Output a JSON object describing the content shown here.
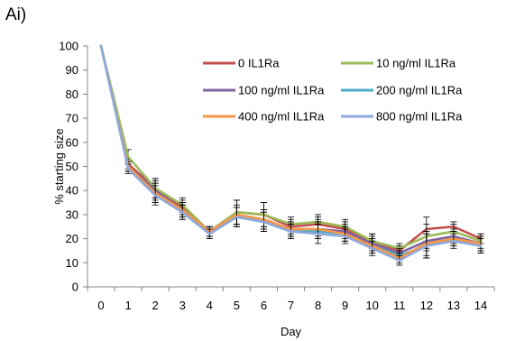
{
  "panel_label": "Ai)",
  "chart_data": {
    "type": "line",
    "title": "",
    "xlabel": "Day",
    "ylabel": "% starting size",
    "x": [
      0,
      1,
      2,
      3,
      4,
      5,
      6,
      7,
      8,
      9,
      10,
      11,
      12,
      13,
      14
    ],
    "xlim": [
      0,
      14
    ],
    "ylim": [
      0,
      100
    ],
    "yticks": [
      0,
      10,
      20,
      30,
      40,
      50,
      60,
      70,
      80,
      90,
      100
    ],
    "grid": false,
    "legend_position": "top-right",
    "series": [
      {
        "name": "0 IL1Ra",
        "color": "#C0504D",
        "values": [
          100,
          51,
          41,
          33,
          23,
          31,
          30,
          25,
          26,
          24,
          19,
          15,
          24,
          25,
          20
        ],
        "errors": [
          0,
          2,
          4,
          3,
          2,
          5,
          5,
          3,
          3,
          3,
          3,
          2,
          5,
          2,
          2
        ]
      },
      {
        "name": "10 ng/ml IL1Ra",
        "color": "#9BBB59",
        "values": [
          100,
          54,
          41,
          34,
          23,
          31,
          30,
          26,
          27,
          25,
          19,
          16,
          21,
          23,
          19
        ],
        "errors": [
          0,
          3,
          4,
          3,
          2,
          5,
          5,
          3,
          3,
          3,
          3,
          2,
          5,
          3,
          3
        ]
      },
      {
        "name": "100 ng/ml IL1Ra",
        "color": "#8064A2",
        "values": [
          100,
          50,
          40,
          32,
          23,
          29,
          28,
          24,
          24,
          23,
          18,
          14,
          19,
          21,
          18
        ],
        "errors": [
          0,
          2,
          4,
          3,
          2,
          4,
          4,
          3,
          3,
          3,
          3,
          2,
          4,
          3,
          3
        ]
      },
      {
        "name": "200 ng/ml IL1Ra",
        "color": "#4BACC6",
        "values": [
          100,
          50,
          39,
          31,
          22,
          29,
          27,
          23,
          23,
          22,
          17,
          13,
          17,
          20,
          17
        ],
        "errors": [
          0,
          2,
          4,
          3,
          2,
          4,
          4,
          3,
          3,
          3,
          3,
          2,
          5,
          3,
          3
        ]
      },
      {
        "name": "400 ng/ml IL1Ra",
        "color": "#F79646",
        "values": [
          100,
          50,
          39,
          32,
          23,
          30,
          28,
          24,
          24,
          22,
          17,
          12,
          18,
          20,
          18
        ],
        "errors": [
          0,
          2,
          4,
          3,
          2,
          4,
          4,
          3,
          4,
          3,
          3,
          2,
          5,
          3,
          3
        ]
      },
      {
        "name": "800 ng/ml IL1Ra",
        "color": "#8EA9DB",
        "values": [
          100,
          49,
          38,
          31,
          22,
          29,
          27,
          23,
          22,
          21,
          16,
          11,
          17,
          19,
          17
        ],
        "errors": [
          0,
          2,
          4,
          3,
          2,
          4,
          4,
          3,
          4,
          3,
          3,
          2,
          5,
          3,
          3
        ]
      }
    ]
  }
}
